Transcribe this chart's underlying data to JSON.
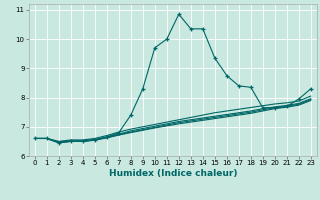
{
  "xlabel": "Humidex (Indice chaleur)",
  "background_color": "#c8e8e0",
  "grid_color": "#ffffff",
  "line_color": "#006666",
  "xlim": [
    -0.5,
    23.5
  ],
  "ylim": [
    6.0,
    11.2
  ],
  "xticks": [
    0,
    1,
    2,
    3,
    4,
    5,
    6,
    7,
    8,
    9,
    10,
    11,
    12,
    13,
    14,
    15,
    16,
    17,
    18,
    19,
    20,
    21,
    22,
    23
  ],
  "yticks": [
    6,
    7,
    8,
    9,
    10,
    11
  ],
  "main_line": {
    "x": [
      0,
      1,
      2,
      3,
      4,
      5,
      6,
      7,
      8,
      9,
      10,
      11,
      12,
      13,
      14,
      15,
      16,
      17,
      18,
      19,
      20,
      21,
      22,
      23
    ],
    "y": [
      6.6,
      6.6,
      6.45,
      6.5,
      6.5,
      6.55,
      6.65,
      6.8,
      7.4,
      8.3,
      9.7,
      10.0,
      10.85,
      10.35,
      10.35,
      9.35,
      8.75,
      8.4,
      8.35,
      7.65,
      7.65,
      7.7,
      7.95,
      8.3
    ]
  },
  "line2": {
    "x": [
      0,
      1,
      2,
      3,
      4,
      5,
      6,
      7,
      8,
      9,
      10,
      11,
      12,
      13,
      14,
      15,
      16,
      17,
      18,
      19,
      20,
      21,
      22,
      23
    ],
    "y": [
      6.6,
      6.6,
      6.5,
      6.55,
      6.55,
      6.6,
      6.7,
      6.82,
      6.92,
      7.0,
      7.08,
      7.16,
      7.24,
      7.32,
      7.4,
      7.48,
      7.54,
      7.6,
      7.66,
      7.72,
      7.78,
      7.82,
      7.88,
      8.05
    ]
  },
  "line3": {
    "x": [
      0,
      1,
      2,
      3,
      4,
      5,
      6,
      7,
      8,
      9,
      10,
      11,
      12,
      13,
      14,
      15,
      16,
      17,
      18,
      19,
      20,
      21,
      22,
      23
    ],
    "y": [
      6.6,
      6.6,
      6.48,
      6.5,
      6.5,
      6.55,
      6.63,
      6.72,
      6.8,
      6.88,
      6.96,
      7.03,
      7.1,
      7.16,
      7.22,
      7.28,
      7.34,
      7.4,
      7.46,
      7.54,
      7.62,
      7.67,
      7.74,
      7.9
    ]
  },
  "line4": {
    "x": [
      0,
      1,
      2,
      3,
      4,
      5,
      6,
      7,
      8,
      9,
      10,
      11,
      12,
      13,
      14,
      15,
      16,
      17,
      18,
      19,
      20,
      21,
      22,
      23
    ],
    "y": [
      6.6,
      6.6,
      6.45,
      6.5,
      6.5,
      6.54,
      6.62,
      6.72,
      6.82,
      6.9,
      6.98,
      7.06,
      7.14,
      7.2,
      7.26,
      7.32,
      7.38,
      7.44,
      7.5,
      7.58,
      7.65,
      7.7,
      7.77,
      7.93
    ]
  },
  "line5": {
    "x": [
      0,
      1,
      2,
      3,
      4,
      5,
      6,
      7,
      8,
      9,
      10,
      11,
      12,
      13,
      14,
      15,
      16,
      17,
      18,
      19,
      20,
      21,
      22,
      23
    ],
    "y": [
      6.6,
      6.6,
      6.47,
      6.52,
      6.52,
      6.57,
      6.65,
      6.75,
      6.86,
      6.94,
      7.02,
      7.1,
      7.18,
      7.24,
      7.3,
      7.36,
      7.42,
      7.48,
      7.54,
      7.62,
      7.68,
      7.73,
      7.8,
      7.96
    ]
  }
}
